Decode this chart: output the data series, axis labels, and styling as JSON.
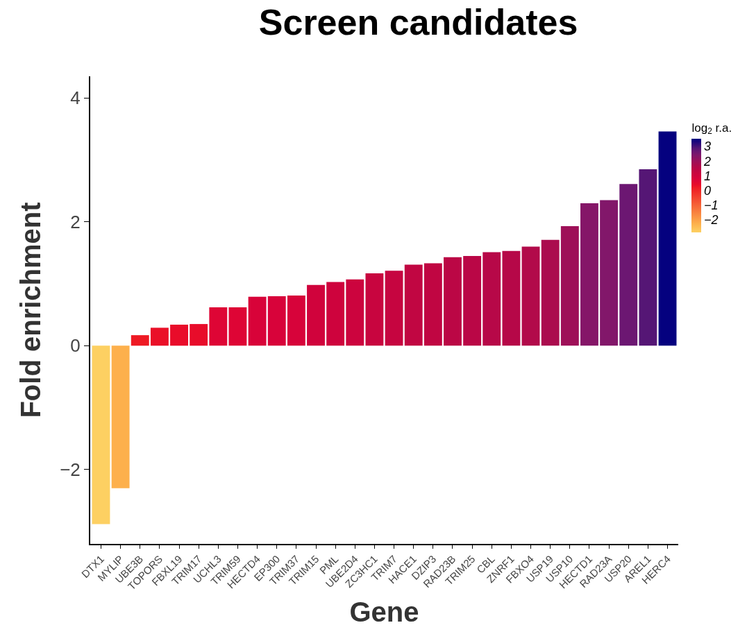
{
  "chart_data": {
    "type": "bar",
    "title": "Screen candidates",
    "xlabel": "Gene",
    "ylabel": "Fold enrichment",
    "clabel": "log$_{2}$ r.a.",
    "categories": [
      "DTX1",
      "MYLIP",
      "UBE3B",
      "TOPORS",
      "FBXL19",
      "TRIM17",
      "UCHL3",
      "TRIM59",
      "HECTD4",
      "EP300",
      "TRIM37",
      "TRIM15",
      "PML",
      "UBE2D4",
      "ZC3HC1",
      "TRIM7",
      "HACE1",
      "DZIP3",
      "RAD23B",
      "TRIM25",
      "CBL",
      "ZNRF1",
      "FBXO4",
      "USP19",
      "USP10",
      "HECTD1",
      "RAD23A",
      "USP20",
      "AREL1",
      "HERC4"
    ],
    "values": [
      -2.88,
      -2.3,
      0.17,
      0.29,
      0.34,
      0.35,
      0.62,
      0.62,
      0.79,
      0.8,
      0.81,
      0.98,
      1.03,
      1.07,
      1.17,
      1.21,
      1.31,
      1.33,
      1.43,
      1.45,
      1.51,
      1.53,
      1.6,
      1.71,
      1.93,
      2.3,
      2.35,
      2.61,
      2.85,
      3.46
    ],
    "cvalues": [
      -2.88,
      -2.3,
      0.17,
      0.29,
      0.34,
      0.35,
      0.62,
      0.62,
      0.79,
      0.8,
      0.81,
      0.98,
      1.03,
      1.07,
      1.17,
      1.21,
      1.31,
      1.33,
      1.43,
      1.45,
      1.51,
      1.53,
      1.6,
      1.71,
      1.93,
      2.3,
      2.35,
      2.61,
      2.85,
      3.46
    ],
    "colors": [
      "#fdd163",
      "#fdb04c",
      "#ee1a24",
      "#ea1028",
      "#e90c2a",
      "#e80c2a",
      "#de0535",
      "#de0535",
      "#d80339",
      "#d8033a",
      "#d7033a",
      "#d0033c",
      "#ce033d",
      "#cc043e",
      "#c8053f",
      "#c60540",
      "#c10642",
      "#c00642",
      "#bb0745",
      "#ba0746",
      "#b70848",
      "#b60848",
      "#b20a4a",
      "#ab0c4e",
      "#9e1058",
      "#851668",
      "#82176a",
      "#6c1772",
      "#551675",
      "#000080"
    ],
    "clim": [
      -2.9,
      3.5
    ],
    "cticks": [
      -2,
      -1,
      0,
      1,
      2,
      3
    ],
    "ylim": [
      -3.2,
      4.35
    ],
    "yticks": [
      -2,
      0,
      2,
      4
    ]
  }
}
